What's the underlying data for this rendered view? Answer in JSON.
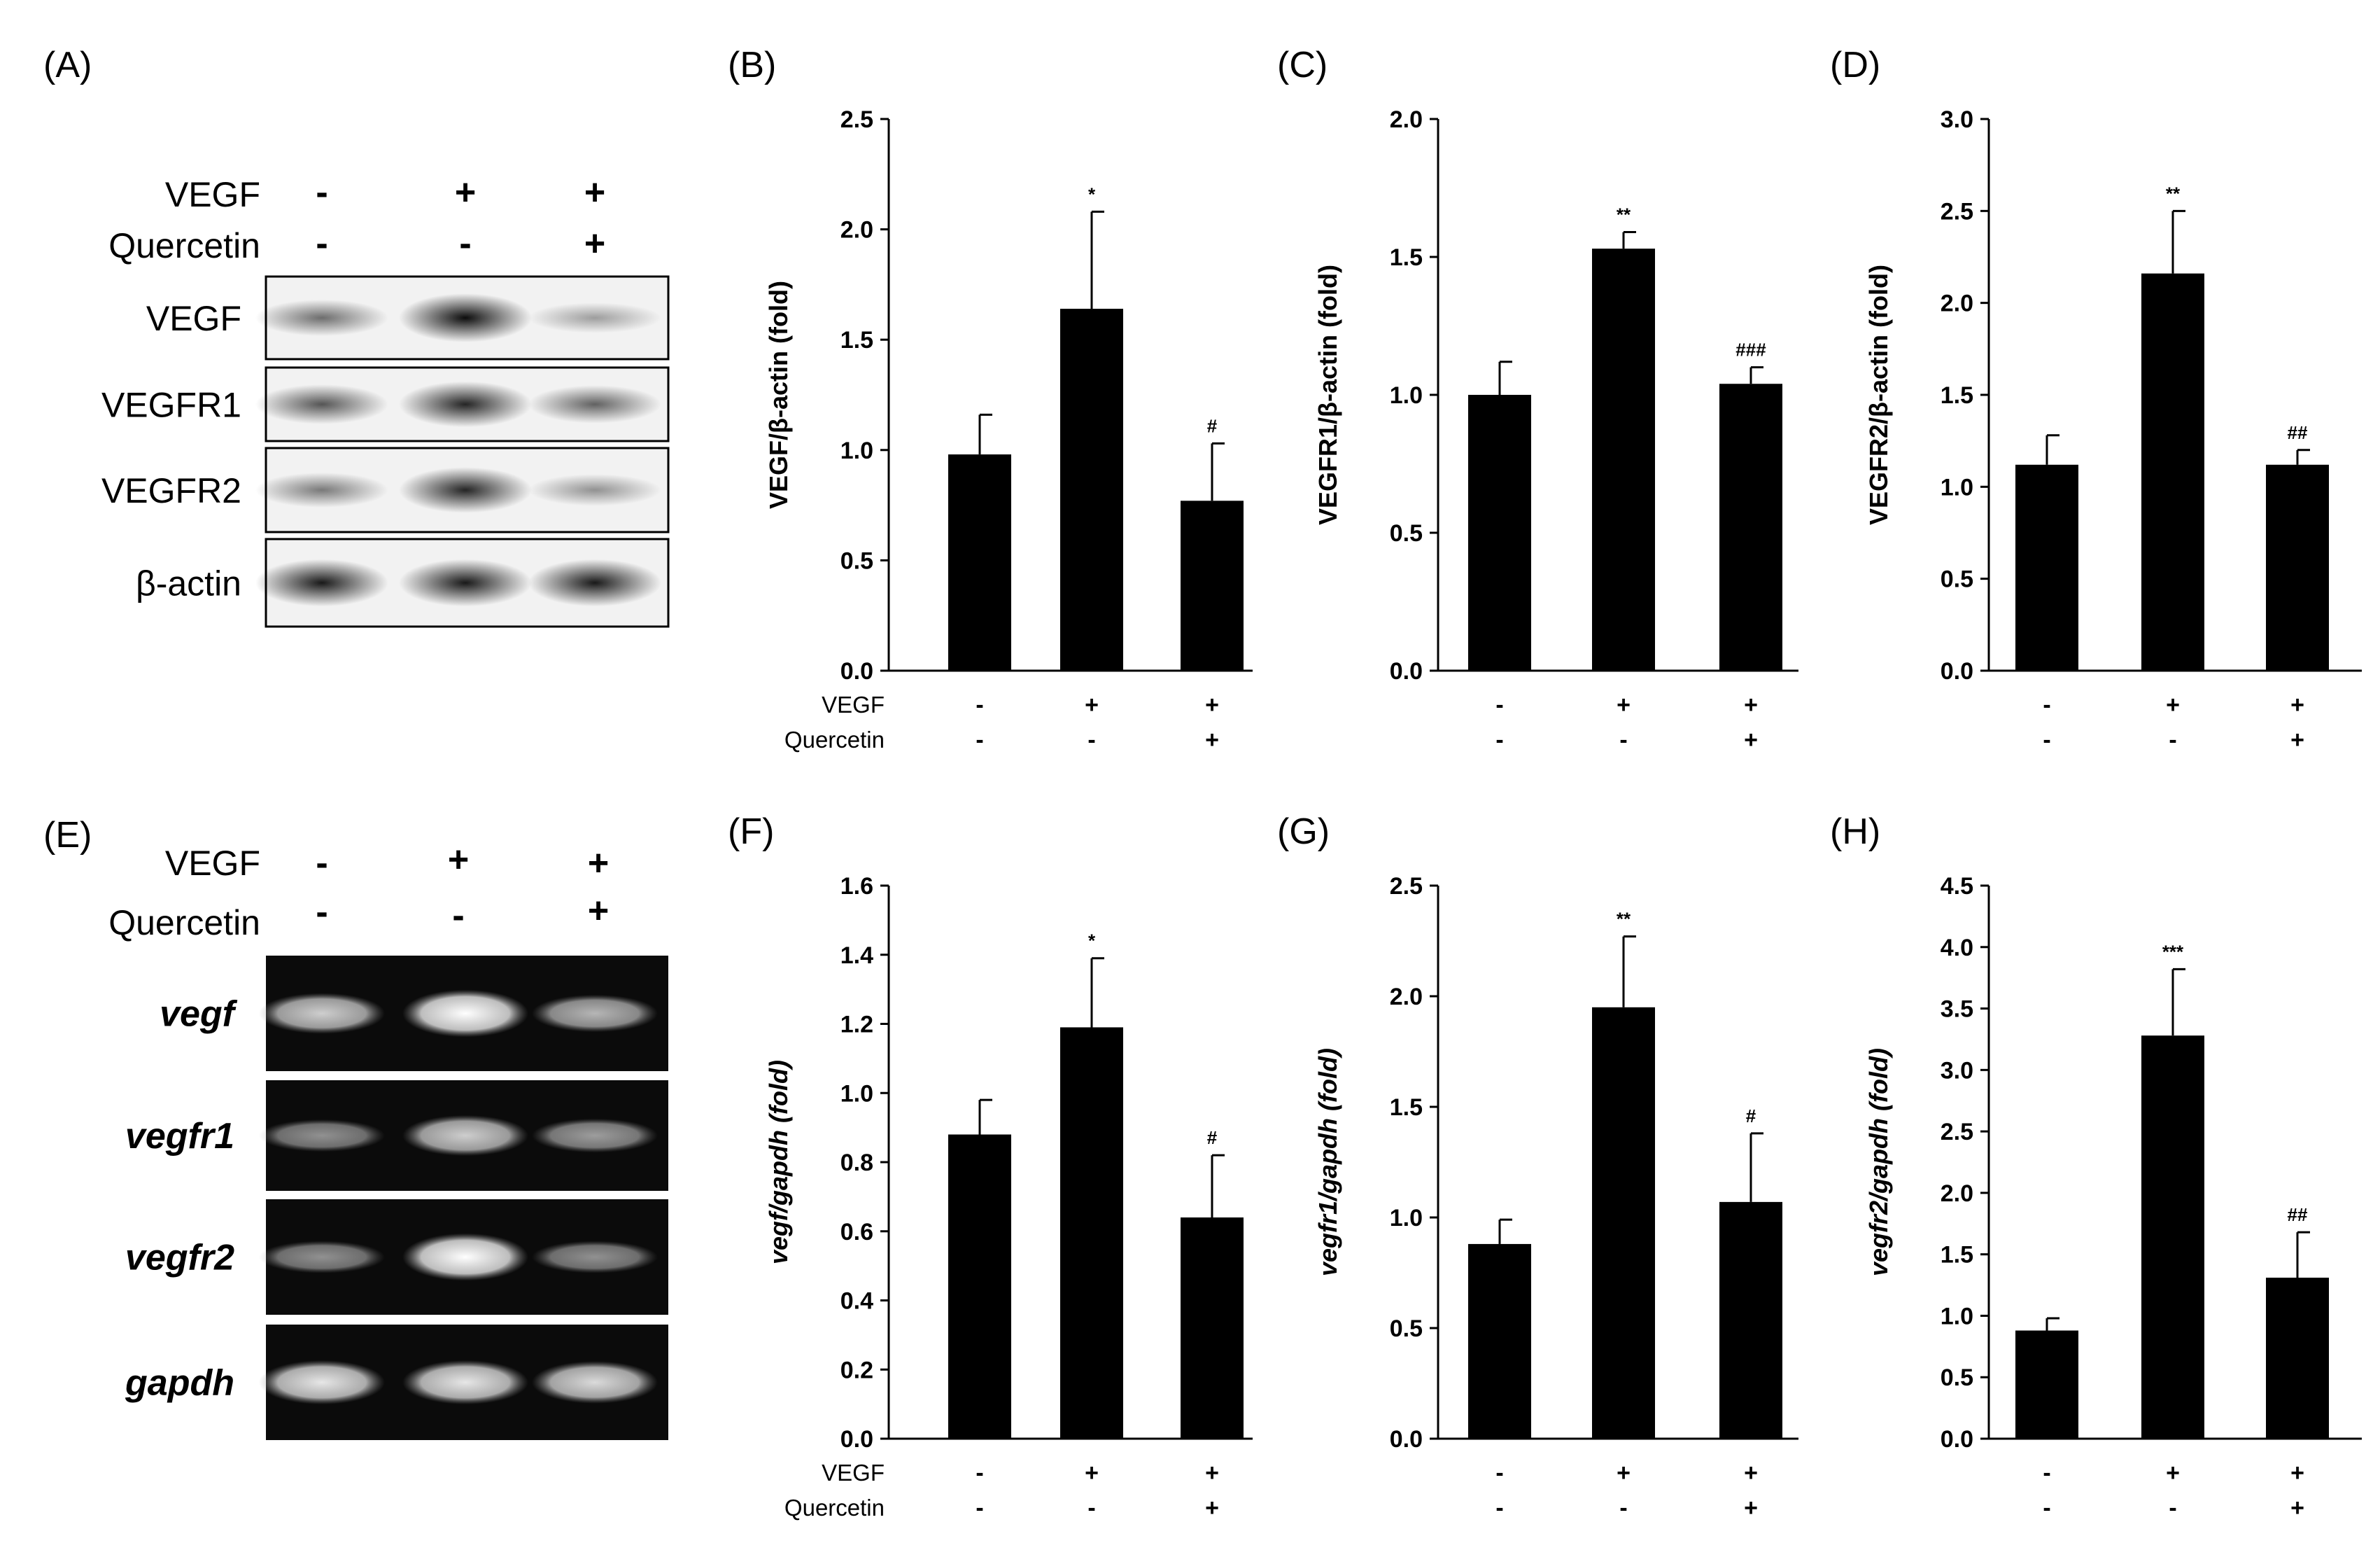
{
  "panels": {
    "A": {
      "label": "(A)",
      "header": {
        "rows": [
          {
            "name": "VEGF",
            "signs": [
              "-",
              "+",
              "+"
            ]
          },
          {
            "name": "Quercetin",
            "signs": [
              "-",
              "-",
              "+"
            ]
          }
        ]
      },
      "blots": [
        {
          "label": "VEGF",
          "intensity": [
            0.55,
            0.95,
            0.35
          ]
        },
        {
          "label": "VEGFR1",
          "intensity": [
            0.65,
            0.85,
            0.6
          ]
        },
        {
          "label": "VEGFR2",
          "intensity": [
            0.5,
            0.85,
            0.4
          ]
        },
        {
          "label": "β-actin",
          "intensity": [
            0.9,
            0.9,
            0.9
          ]
        }
      ]
    },
    "E": {
      "label": "(E)",
      "header": {
        "rows": [
          {
            "name": "VEGF",
            "signs": [
              "-",
              "+",
              "+"
            ]
          },
          {
            "name": "Quercetin",
            "signs": [
              "-",
              "-",
              "+"
            ]
          }
        ]
      },
      "gels": [
        {
          "label": "vegf",
          "intensity": [
            0.8,
            1.0,
            0.7
          ]
        },
        {
          "label": "vegfr1",
          "intensity": [
            0.55,
            0.8,
            0.6
          ]
        },
        {
          "label": "vegfr2",
          "intensity": [
            0.55,
            1.0,
            0.55
          ]
        },
        {
          "label": "gapdh",
          "intensity": [
            0.9,
            0.9,
            0.85
          ]
        }
      ]
    }
  },
  "condition_labels": [
    "VEGF",
    "Quercetin"
  ],
  "chart_data": [
    {
      "panel": "(B)",
      "type": "bar",
      "ylabel": "VEGF/β-actin (fold)",
      "ylabel_html": "VEGF/<tspan>β</tspan>-actin (fold)",
      "yticks": [
        "0.0",
        "0.5",
        "1.0",
        "1.5",
        "2.0",
        "2.5"
      ],
      "ylim": [
        0,
        2.5
      ],
      "values": [
        0.98,
        1.64,
        0.77
      ],
      "errors": [
        0.18,
        0.44,
        0.26
      ],
      "sig": [
        "",
        "*",
        "#"
      ],
      "vegf": [
        "-",
        "+",
        "+"
      ],
      "quercetin": [
        "-",
        "-",
        "+"
      ],
      "show_cond_labels": true,
      "italic_ylabel": false
    },
    {
      "panel": "(C)",
      "type": "bar",
      "ylabel": "VEGFR1/β-actin (fold)",
      "yticks": [
        "0.0",
        "0.5",
        "1.0",
        "1.5",
        "2.0"
      ],
      "ylim": [
        0,
        2.0
      ],
      "values": [
        1.0,
        1.53,
        1.04
      ],
      "errors": [
        0.12,
        0.06,
        0.06
      ],
      "sig": [
        "",
        "**",
        "###"
      ],
      "vegf": [
        "-",
        "+",
        "+"
      ],
      "quercetin": [
        "-",
        "-",
        "+"
      ],
      "show_cond_labels": false,
      "italic_ylabel": false
    },
    {
      "panel": "(D)",
      "type": "bar",
      "ylabel": "VEGFR2/β-actin (fold)",
      "yticks": [
        "0.0",
        "0.5",
        "1.0",
        "1.5",
        "2.0",
        "2.5",
        "3.0"
      ],
      "ylim": [
        0,
        3.0
      ],
      "values": [
        1.12,
        2.16,
        1.12
      ],
      "errors": [
        0.16,
        0.34,
        0.08
      ],
      "sig": [
        "",
        "**",
        "##"
      ],
      "vegf": [
        "-",
        "+",
        "+"
      ],
      "quercetin": [
        "-",
        "-",
        "+"
      ],
      "show_cond_labels": false,
      "italic_ylabel": false
    },
    {
      "panel": "(F)",
      "type": "bar",
      "ylabel": "vegf/gapdh (fold)",
      "yticks": [
        "0.0",
        "0.2",
        "0.4",
        "0.6",
        "0.8",
        "1.0",
        "1.2",
        "1.4",
        "1.6"
      ],
      "ylim": [
        0,
        1.6
      ],
      "values": [
        0.88,
        1.19,
        0.64
      ],
      "errors": [
        0.1,
        0.2,
        0.18
      ],
      "sig": [
        "",
        "*",
        "#"
      ],
      "vegf": [
        "-",
        "+",
        "+"
      ],
      "quercetin": [
        "-",
        "-",
        "+"
      ],
      "show_cond_labels": true,
      "italic_ylabel": true
    },
    {
      "panel": "(G)",
      "type": "bar",
      "ylabel": "vegfr1/gapdh (fold)",
      "yticks": [
        "0.0",
        "0.5",
        "1.0",
        "1.5",
        "2.0",
        "2.5"
      ],
      "ylim": [
        0,
        2.5
      ],
      "values": [
        0.88,
        1.95,
        1.07
      ],
      "errors": [
        0.11,
        0.32,
        0.31
      ],
      "sig": [
        "",
        "**",
        "#"
      ],
      "vegf": [
        "-",
        "+",
        "+"
      ],
      "quercetin": [
        "-",
        "-",
        "+"
      ],
      "show_cond_labels": false,
      "italic_ylabel": true
    },
    {
      "panel": "(H)",
      "type": "bar",
      "ylabel": "vegfr2/gapdh (fold)",
      "yticks": [
        "0.0",
        "0.5",
        "1.0",
        "1.5",
        "2.0",
        "2.5",
        "3.0",
        "3.5",
        "4.0",
        "4.5"
      ],
      "ylim": [
        0,
        4.5
      ],
      "values": [
        0.88,
        3.28,
        1.31
      ],
      "errors": [
        0.1,
        0.54,
        0.37
      ],
      "sig": [
        "",
        "***",
        "##"
      ],
      "vegf": [
        "-",
        "+",
        "+"
      ],
      "quercetin": [
        "-",
        "-",
        "+"
      ],
      "show_cond_labels": false,
      "italic_ylabel": true
    }
  ]
}
